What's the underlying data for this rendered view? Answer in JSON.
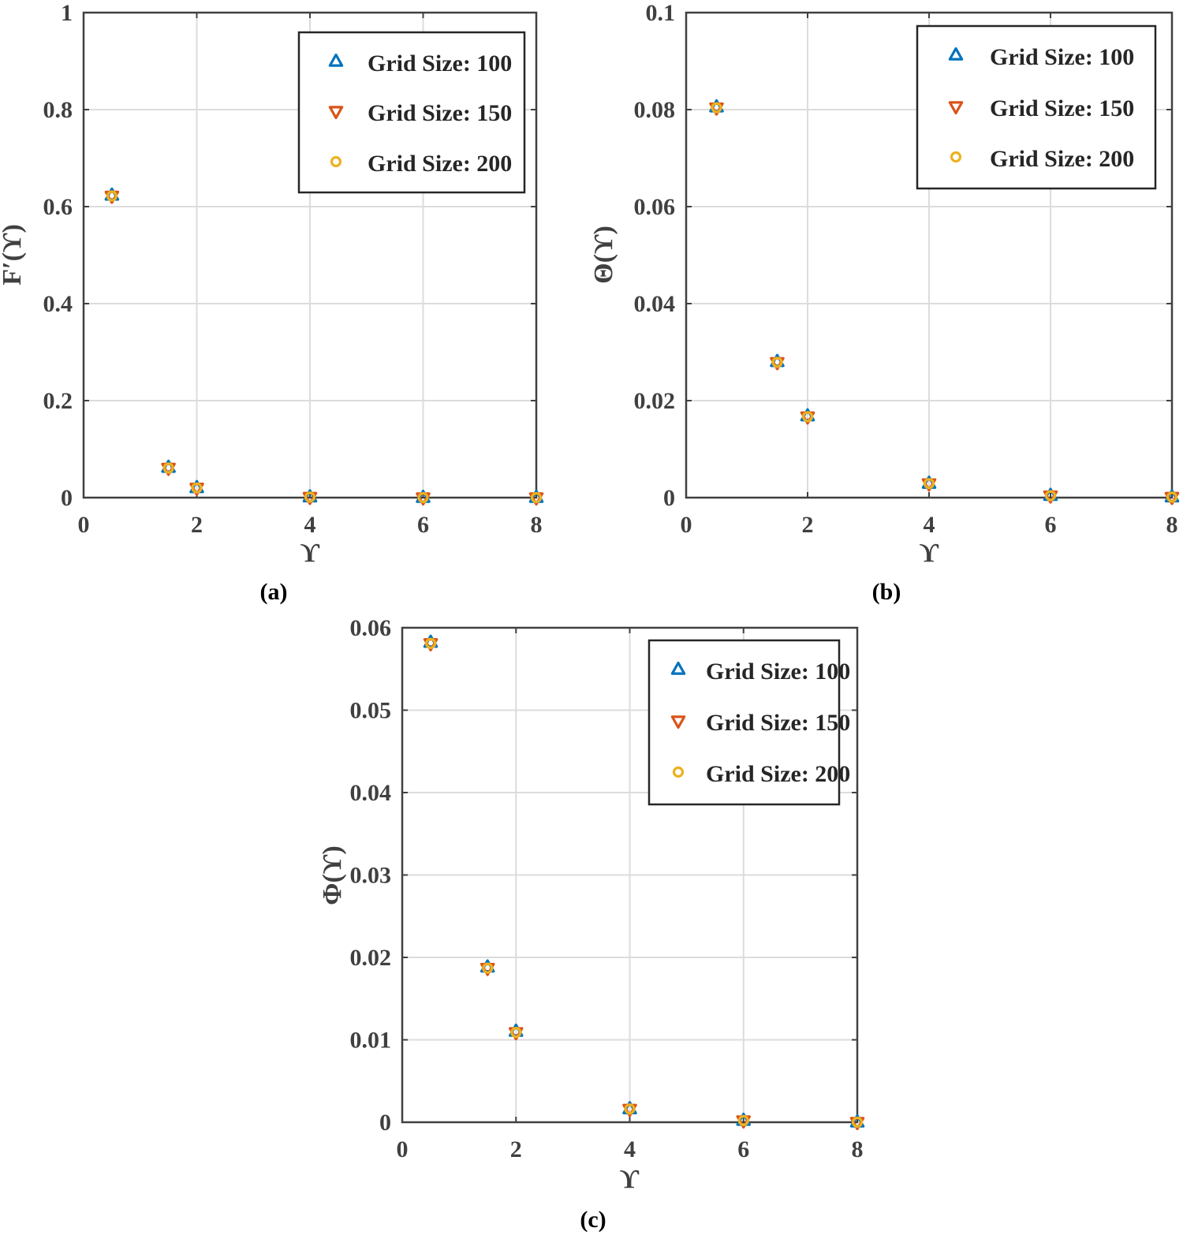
{
  "colors": {
    "grid_100": "#0072BD",
    "grid_150": "#D95319",
    "grid_200": "#EDB120",
    "axis": "#404040",
    "gridline": "#dcdcdc"
  },
  "chart_data": [
    {
      "type": "scatter",
      "caption": "(a)",
      "xlabel": "ϒ",
      "ylabel": "F′(ϒ)",
      "xlim": [
        0,
        8
      ],
      "ylim": [
        0,
        1
      ],
      "xticks": [
        0,
        2,
        4,
        6,
        8
      ],
      "xtick_labels": [
        "0",
        "2",
        "4",
        "6",
        "8"
      ],
      "yticks": [
        0,
        0.2,
        0.4,
        0.6,
        0.8,
        1
      ],
      "ytick_labels": [
        "0",
        "0.2",
        "0.4",
        "0.6",
        "0.8",
        "1"
      ],
      "grid": true,
      "legend_position": "top-right",
      "series": [
        {
          "name": "Grid Size: 100",
          "marker": "triangle-up",
          "color": "#0072BD",
          "x": [
            0.5,
            1.5,
            2,
            4,
            6,
            8
          ],
          "y": [
            0.623,
            0.062,
            0.02,
            0.001,
            0.0,
            0.0
          ]
        },
        {
          "name": "Grid Size: 150",
          "marker": "triangle-down",
          "color": "#D95319",
          "x": [
            0.5,
            1.5,
            2,
            4,
            6,
            8
          ],
          "y": [
            0.622,
            0.061,
            0.02,
            0.001,
            0.0,
            0.0
          ]
        },
        {
          "name": "Grid Size: 200",
          "marker": "circle",
          "color": "#EDB120",
          "x": [
            0.5,
            1.5,
            2,
            4,
            6,
            8
          ],
          "y": [
            0.622,
            0.061,
            0.02,
            0.001,
            0.0,
            0.0
          ]
        }
      ]
    },
    {
      "type": "scatter",
      "caption": "(b)",
      "xlabel": "ϒ",
      "ylabel": "Θ(ϒ)",
      "xlim": [
        0,
        8
      ],
      "ylim": [
        0,
        0.1
      ],
      "xticks": [
        0,
        2,
        4,
        6,
        8
      ],
      "xtick_labels": [
        "0",
        "2",
        "4",
        "6",
        "8"
      ],
      "yticks": [
        0,
        0.02,
        0.04,
        0.06,
        0.08,
        0.1
      ],
      "ytick_labels": [
        "0",
        "0.02",
        "0.04",
        "0.06",
        "0.08",
        "0.1"
      ],
      "grid": true,
      "legend_position": "top-right",
      "series": [
        {
          "name": "Grid Size: 100",
          "marker": "triangle-up",
          "color": "#0072BD",
          "x": [
            0.5,
            1.5,
            2,
            4,
            6,
            8
          ],
          "y": [
            0.0805,
            0.028,
            0.0168,
            0.0029,
            0.0004,
            0.0001
          ]
        },
        {
          "name": "Grid Size: 150",
          "marker": "triangle-down",
          "color": "#D95319",
          "x": [
            0.5,
            1.5,
            2,
            4,
            6,
            8
          ],
          "y": [
            0.0804,
            0.0279,
            0.0167,
            0.0029,
            0.0004,
            0.0001
          ]
        },
        {
          "name": "Grid Size: 200",
          "marker": "circle",
          "color": "#EDB120",
          "x": [
            0.5,
            1.5,
            2,
            4,
            6,
            8
          ],
          "y": [
            0.0804,
            0.0279,
            0.0167,
            0.0029,
            0.0004,
            0.0001
          ]
        }
      ]
    },
    {
      "type": "scatter",
      "caption": "(c)",
      "xlabel": "ϒ",
      "ylabel": "Φ(ϒ)",
      "xlim": [
        0,
        8
      ],
      "ylim": [
        0,
        0.06
      ],
      "xticks": [
        0,
        2,
        4,
        6,
        8
      ],
      "xtick_labels": [
        "0",
        "2",
        "4",
        "6",
        "8"
      ],
      "yticks": [
        0,
        0.01,
        0.02,
        0.03,
        0.04,
        0.05,
        0.06
      ],
      "ytick_labels": [
        "0",
        "0.01",
        "0.02",
        "0.03",
        "0.04",
        "0.05",
        "0.06"
      ],
      "grid": true,
      "legend_position": "top-right",
      "series": [
        {
          "name": "Grid Size: 100",
          "marker": "triangle-up",
          "color": "#0072BD",
          "x": [
            0.5,
            1.5,
            2,
            4,
            6,
            8
          ],
          "y": [
            0.0582,
            0.0188,
            0.011,
            0.0016,
            0.0002,
            0.0
          ]
        },
        {
          "name": "Grid Size: 150",
          "marker": "triangle-down",
          "color": "#D95319",
          "x": [
            0.5,
            1.5,
            2,
            4,
            6,
            8
          ],
          "y": [
            0.0581,
            0.0187,
            0.0109,
            0.0016,
            0.0002,
            0.0
          ]
        },
        {
          "name": "Grid Size: 200",
          "marker": "circle",
          "color": "#EDB120",
          "x": [
            0.5,
            1.5,
            2,
            4,
            6,
            8
          ],
          "y": [
            0.0581,
            0.0187,
            0.0109,
            0.0016,
            0.0002,
            0.0
          ]
        }
      ]
    }
  ]
}
